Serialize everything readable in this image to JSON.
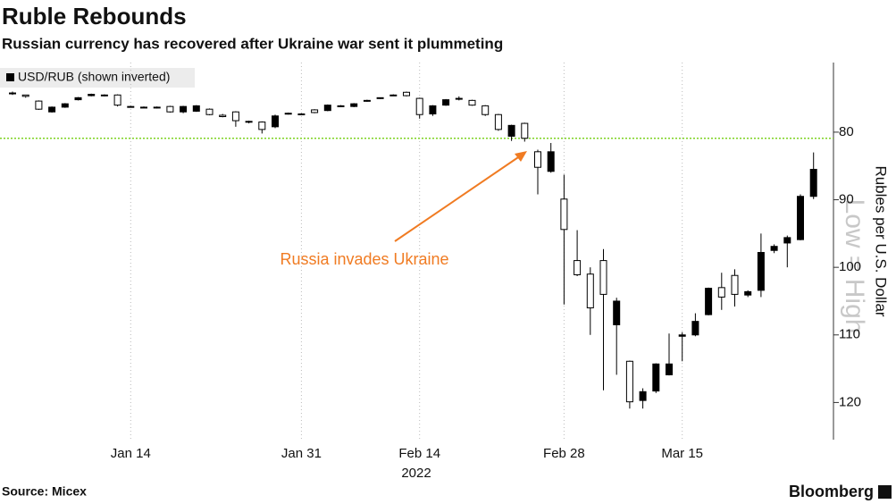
{
  "chart_data": {
    "type": "candlestick",
    "title": "Ruble Rebounds",
    "subtitle": "Russian currency has recovered after Ukraine war sent it plummeting",
    "legend": "USD/RUB (shown inverted)",
    "y_axis_label": "Rubles per U.S. Dollar",
    "watermark": "Low = High",
    "year_label": "2022",
    "annotation": "Russia invades Ukraine",
    "source": "Source: Micex",
    "brand": "Bloomberg",
    "inverted": true,
    "ylim": [
      69.7,
      125.5
    ],
    "yticks": [
      80,
      90,
      100,
      110,
      120
    ],
    "reference_line": 80.9,
    "reference_color": "#7ed321",
    "annotation_color": "#f07b22",
    "categories": [
      null,
      null,
      null,
      null,
      null,
      null,
      null,
      null,
      null,
      "Jan 14",
      null,
      null,
      null,
      null,
      null,
      null,
      null,
      null,
      null,
      null,
      null,
      null,
      "Jan 31",
      null,
      null,
      null,
      null,
      null,
      null,
      null,
      null,
      "Feb 14",
      null,
      null,
      null,
      null,
      null,
      null,
      null,
      null,
      null,
      null,
      "Feb 28",
      null,
      null,
      null,
      null,
      null,
      null,
      null,
      null,
      "Mar 15",
      null,
      null,
      null,
      null,
      null,
      null,
      null,
      null,
      null,
      null
    ],
    "series": [
      {
        "name": "USD/RUB",
        "open": [
          74.3,
          74.5,
          75.4,
          77.0,
          76.3,
          75.2,
          74.6,
          74.5,
          74.5,
          76.2,
          76.3,
          76.3,
          76.2,
          77.0,
          76.9,
          76.6,
          77.5,
          77.0,
          78.4,
          78.5,
          79.2,
          77.3,
          77.3,
          76.7,
          76.8,
          76.1,
          76.2,
          75.4,
          75.0,
          74.5,
          74.1,
          75.0,
          77.3,
          76.0,
          75.0,
          75.3,
          76.1,
          77.4,
          80.6,
          78.7,
          82.9,
          85.8,
          89.9,
          99.0,
          101.0,
          99.0,
          108.5,
          113.9,
          119.7,
          118.3,
          115.9,
          110.2,
          110.0,
          107.0,
          103.0,
          101.2,
          104.1,
          103.4,
          97.5,
          96.4,
          95.9,
          89.5
        ],
        "high": [
          74.5,
          74.9,
          76.7,
          77.1,
          76.4,
          75.3,
          74.7,
          74.7,
          76.2,
          76.3,
          76.4,
          76.5,
          77.1,
          77.2,
          77.0,
          77.5,
          77.8,
          79.2,
          78.7,
          80.2,
          79.4,
          77.4,
          77.5,
          77.2,
          76.9,
          76.3,
          76.3,
          75.5,
          75.1,
          74.6,
          74.7,
          78.0,
          77.6,
          76.1,
          75.3,
          76.1,
          77.6,
          79.8,
          81.3,
          81.4,
          89.2,
          86.0,
          105.5,
          101.3,
          110.0,
          118.2,
          115.9,
          120.9,
          120.9,
          118.6,
          116.0,
          113.9,
          110.2,
          107.1,
          106.3,
          105.8,
          104.4,
          104.4,
          97.9,
          100.0,
          96.0,
          89.9
        ],
        "low": [
          74.0,
          74.5,
          75.3,
          76.2,
          75.7,
          74.8,
          74.3,
          74.4,
          74.4,
          76.1,
          76.2,
          76.2,
          76.1,
          76.1,
          76.0,
          76.5,
          77.3,
          76.9,
          78.3,
          78.4,
          77.4,
          77.1,
          77.2,
          76.6,
          75.9,
          76.0,
          75.7,
          75.2,
          74.9,
          74.4,
          74.0,
          74.9,
          76.0,
          75.1,
          74.7,
          75.2,
          76.0,
          77.3,
          78.9,
          78.6,
          82.6,
          81.6,
          86.3,
          94.5,
          100.0,
          97.3,
          104.5,
          113.8,
          117.9,
          114.2,
          109.8,
          109.6,
          106.8,
          103.0,
          100.8,
          100.3,
          103.4,
          95.0,
          96.6,
          95.3,
          89.2,
          83.0
        ],
        "close": [
          74.2,
          74.7,
          76.6,
          76.3,
          75.8,
          74.9,
          74.4,
          74.6,
          76.0,
          76.2,
          76.3,
          76.4,
          77.0,
          76.2,
          76.1,
          77.4,
          77.7,
          78.3,
          78.5,
          79.6,
          77.6,
          77.2,
          77.4,
          77.1,
          76.0,
          76.2,
          75.8,
          75.3,
          74.9,
          74.5,
          74.6,
          77.4,
          76.1,
          75.2,
          75.0,
          76.0,
          77.4,
          79.6,
          79.0,
          80.9,
          85.2,
          82.9,
          94.4,
          101.1,
          106.0,
          104.0,
          105.0,
          119.9,
          118.4,
          114.3,
          114.3,
          110.0,
          108.0,
          103.1,
          104.4,
          104.0,
          103.6,
          97.8,
          96.9,
          95.6,
          89.5,
          85.5
        ]
      }
    ]
  }
}
